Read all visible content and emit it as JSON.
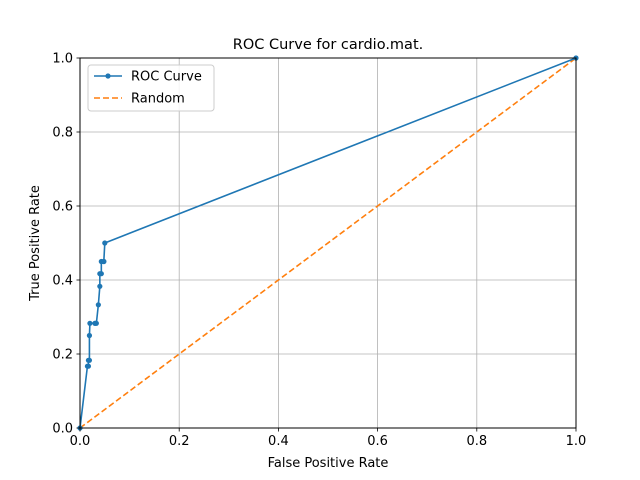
{
  "chart_data": {
    "type": "line",
    "title": "ROC Curve for cardio.mat.",
    "xlabel": "False Positive Rate",
    "ylabel": "True Positive Rate",
    "xlim": [
      0,
      1
    ],
    "ylim": [
      0,
      1
    ],
    "x_ticks": [
      "0.0",
      "0.2",
      "0.4",
      "0.6",
      "0.8",
      "1.0"
    ],
    "y_ticks": [
      "0.0",
      "0.2",
      "0.4",
      "0.6",
      "0.8",
      "1.0"
    ],
    "grid": true,
    "legend_position": "top-left",
    "series": [
      {
        "name": "ROC Curve",
        "color": "#1f77b4",
        "style": "solid",
        "marker": "circle",
        "x": [
          0.0,
          0.015,
          0.017,
          0.017,
          0.019,
          0.019,
          0.02,
          0.03,
          0.031,
          0.033,
          0.037,
          0.04,
          0.04,
          0.043,
          0.043,
          0.048,
          0.048,
          0.05,
          1.0
        ],
        "y": [
          0.0,
          0.167,
          0.167,
          0.183,
          0.183,
          0.25,
          0.283,
          0.283,
          0.283,
          0.283,
          0.333,
          0.383,
          0.417,
          0.417,
          0.45,
          0.45,
          0.45,
          0.5,
          1.0
        ]
      },
      {
        "name": "Random",
        "color": "#ff7f0e",
        "style": "dashed",
        "marker": "none",
        "x": [
          0,
          1
        ],
        "y": [
          0,
          1
        ]
      }
    ]
  }
}
